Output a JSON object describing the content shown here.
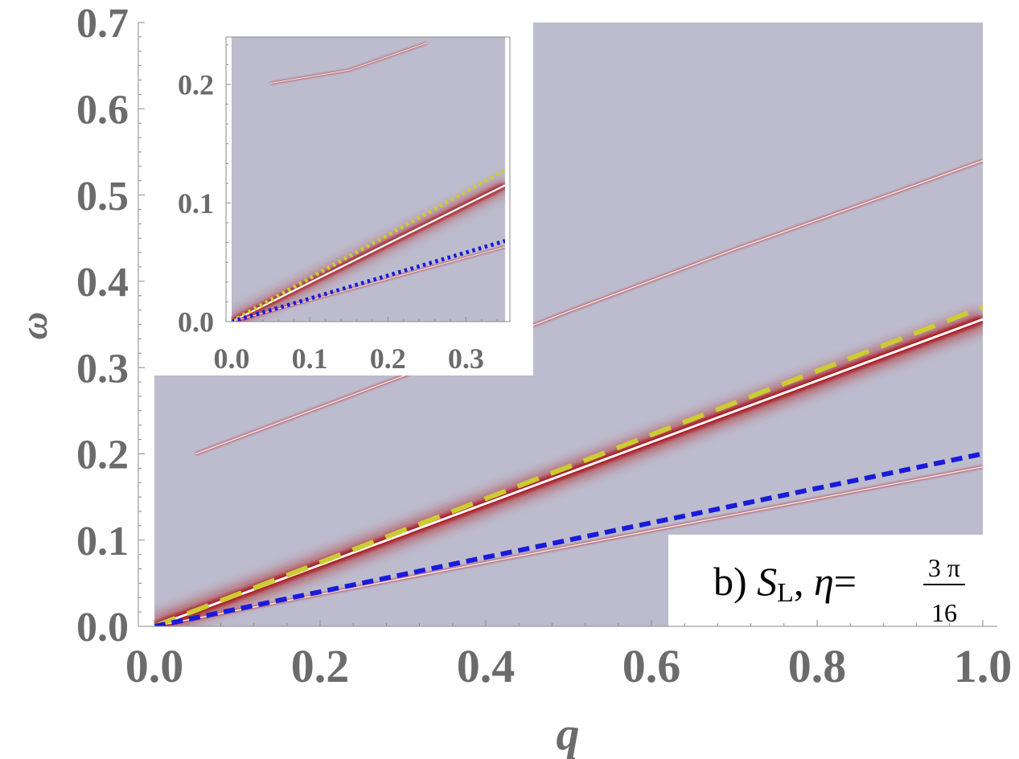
{
  "chart_data": [
    {
      "type": "heatmap",
      "role": "main",
      "xlabel": "q",
      "ylabel": "ω",
      "xlim": [
        0.0,
        1.0
      ],
      "ylim": [
        0.0,
        0.7
      ],
      "x_ticks": [
        "0.0",
        "0.2",
        "0.4",
        "0.6",
        "0.8",
        "1.0"
      ],
      "x_tick_values": [
        0.0,
        0.2,
        0.4,
        0.6,
        0.8,
        1.0
      ],
      "y_ticks": [
        "0.0",
        "0.1",
        "0.2",
        "0.3",
        "0.4",
        "0.5",
        "0.6",
        "0.7"
      ],
      "y_tick_values": [
        0.0,
        0.1,
        0.2,
        0.3,
        0.4,
        0.5,
        0.6,
        0.7
      ],
      "background_color": "#bcbcce",
      "bands": [
        {
          "name": "main-mode",
          "x": [
            0.0,
            1.0
          ],
          "y": [
            0.0,
            0.356
          ],
          "style": "broad"
        },
        {
          "name": "lower-mode",
          "x": [
            0.0,
            1.0
          ],
          "y": [
            0.0,
            0.185
          ],
          "style": "thin"
        },
        {
          "name": "upper-mode",
          "x": [
            0.05,
            0.3,
            0.5,
            0.7,
            0.9,
            1.0
          ],
          "y": [
            0.2,
            0.29,
            0.365,
            0.437,
            0.505,
            0.54
          ],
          "style": "thin"
        }
      ],
      "series": [
        {
          "name": "yellow-dashed",
          "x": [
            0.0,
            1.0
          ],
          "y": [
            0.0,
            0.37
          ],
          "color": "#cccc33",
          "dash": "long"
        },
        {
          "name": "blue-dashed",
          "x": [
            0.0,
            1.0
          ],
          "y": [
            0.0,
            0.2
          ],
          "color": "#1a1adb",
          "dash": "short"
        }
      ],
      "annotation": {
        "prefix": "b) ",
        "symbol": "S",
        "subscript": "L",
        "separator": ", ",
        "greek": "η",
        "equals": "=",
        "numerator": "3 π",
        "denominator": "16"
      }
    },
    {
      "type": "heatmap",
      "role": "inset",
      "xlabel": "",
      "ylabel": "",
      "xlim": [
        0.0,
        0.35
      ],
      "ylim": [
        0.0,
        0.24
      ],
      "x_ticks": [
        "0.0",
        "0.1",
        "0.2",
        "0.3"
      ],
      "x_tick_values": [
        0.0,
        0.1,
        0.2,
        0.3
      ],
      "y_ticks": [
        "0.0",
        "0.1",
        "0.2"
      ],
      "y_tick_values": [
        0.0,
        0.1,
        0.2
      ],
      "background_color": "#bcbcce",
      "bands": [
        {
          "name": "main-mode",
          "x": [
            0.0,
            0.35
          ],
          "y": [
            0.0,
            0.115
          ],
          "style": "broad"
        },
        {
          "name": "lower-mode",
          "x": [
            0.0,
            0.35
          ],
          "y": [
            0.0,
            0.063
          ],
          "style": "thin"
        },
        {
          "name": "upper-mode",
          "x": [
            0.05,
            0.15,
            0.25
          ],
          "y": [
            0.201,
            0.212,
            0.235
          ],
          "style": "thin"
        }
      ],
      "series": [
        {
          "name": "yellow-dotted",
          "x": [
            0.0,
            0.35
          ],
          "y": [
            0.0,
            0.128
          ],
          "color": "#cccc33",
          "dash": "dot"
        },
        {
          "name": "blue-dotted",
          "x": [
            0.0,
            0.35
          ],
          "y": [
            0.0,
            0.068
          ],
          "color": "#1a1adb",
          "dash": "dot"
        }
      ]
    }
  ]
}
